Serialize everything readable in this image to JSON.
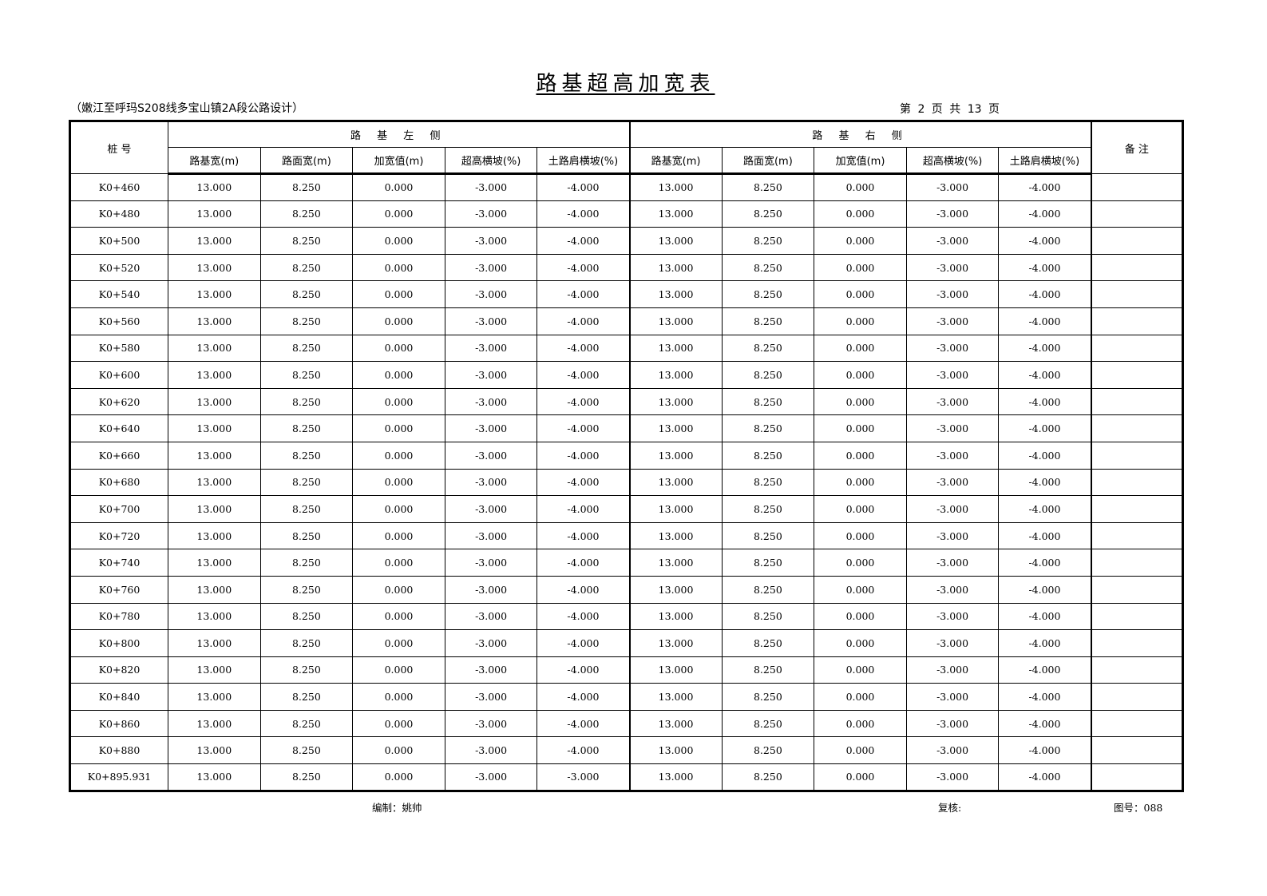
{
  "title": "路基超高加宽表",
  "subtitle": "（嫩江至呼玛S208线多宝山镇2A段公路设计）",
  "page_info": "第 2 页  共 13 页",
  "table": {
    "station_header": "桩  号",
    "left_group": "路 基 左 侧",
    "right_group": "路 基 右 侧",
    "remark_header": "备 注",
    "sub_headers": [
      "路基宽(m)",
      "路面宽(m)",
      "加宽值(m)",
      "超高横坡(%)",
      "土路肩横坡(%)",
      "路基宽(m)",
      "路面宽(m)",
      "加宽值(m)",
      "超高横坡(%)",
      "土路肩横坡(%)"
    ],
    "rows": [
      [
        "K0+460",
        "13.000",
        "8.250",
        "0.000",
        "-3.000",
        "-4.000",
        "13.000",
        "8.250",
        "0.000",
        "-3.000",
        "-4.000",
        ""
      ],
      [
        "K0+480",
        "13.000",
        "8.250",
        "0.000",
        "-3.000",
        "-4.000",
        "13.000",
        "8.250",
        "0.000",
        "-3.000",
        "-4.000",
        ""
      ],
      [
        "K0+500",
        "13.000",
        "8.250",
        "0.000",
        "-3.000",
        "-4.000",
        "13.000",
        "8.250",
        "0.000",
        "-3.000",
        "-4.000",
        ""
      ],
      [
        "K0+520",
        "13.000",
        "8.250",
        "0.000",
        "-3.000",
        "-4.000",
        "13.000",
        "8.250",
        "0.000",
        "-3.000",
        "-4.000",
        ""
      ],
      [
        "K0+540",
        "13.000",
        "8.250",
        "0.000",
        "-3.000",
        "-4.000",
        "13.000",
        "8.250",
        "0.000",
        "-3.000",
        "-4.000",
        ""
      ],
      [
        "K0+560",
        "13.000",
        "8.250",
        "0.000",
        "-3.000",
        "-4.000",
        "13.000",
        "8.250",
        "0.000",
        "-3.000",
        "-4.000",
        ""
      ],
      [
        "K0+580",
        "13.000",
        "8.250",
        "0.000",
        "-3.000",
        "-4.000",
        "13.000",
        "8.250",
        "0.000",
        "-3.000",
        "-4.000",
        ""
      ],
      [
        "K0+600",
        "13.000",
        "8.250",
        "0.000",
        "-3.000",
        "-4.000",
        "13.000",
        "8.250",
        "0.000",
        "-3.000",
        "-4.000",
        ""
      ],
      [
        "K0+620",
        "13.000",
        "8.250",
        "0.000",
        "-3.000",
        "-4.000",
        "13.000",
        "8.250",
        "0.000",
        "-3.000",
        "-4.000",
        ""
      ],
      [
        "K0+640",
        "13.000",
        "8.250",
        "0.000",
        "-3.000",
        "-4.000",
        "13.000",
        "8.250",
        "0.000",
        "-3.000",
        "-4.000",
        ""
      ],
      [
        "K0+660",
        "13.000",
        "8.250",
        "0.000",
        "-3.000",
        "-4.000",
        "13.000",
        "8.250",
        "0.000",
        "-3.000",
        "-4.000",
        ""
      ],
      [
        "K0+680",
        "13.000",
        "8.250",
        "0.000",
        "-3.000",
        "-4.000",
        "13.000",
        "8.250",
        "0.000",
        "-3.000",
        "-4.000",
        ""
      ],
      [
        "K0+700",
        "13.000",
        "8.250",
        "0.000",
        "-3.000",
        "-4.000",
        "13.000",
        "8.250",
        "0.000",
        "-3.000",
        "-4.000",
        ""
      ],
      [
        "K0+720",
        "13.000",
        "8.250",
        "0.000",
        "-3.000",
        "-4.000",
        "13.000",
        "8.250",
        "0.000",
        "-3.000",
        "-4.000",
        ""
      ],
      [
        "K0+740",
        "13.000",
        "8.250",
        "0.000",
        "-3.000",
        "-4.000",
        "13.000",
        "8.250",
        "0.000",
        "-3.000",
        "-4.000",
        ""
      ],
      [
        "K0+760",
        "13.000",
        "8.250",
        "0.000",
        "-3.000",
        "-4.000",
        "13.000",
        "8.250",
        "0.000",
        "-3.000",
        "-4.000",
        ""
      ],
      [
        "K0+780",
        "13.000",
        "8.250",
        "0.000",
        "-3.000",
        "-4.000",
        "13.000",
        "8.250",
        "0.000",
        "-3.000",
        "-4.000",
        ""
      ],
      [
        "K0+800",
        "13.000",
        "8.250",
        "0.000",
        "-3.000",
        "-4.000",
        "13.000",
        "8.250",
        "0.000",
        "-3.000",
        "-4.000",
        ""
      ],
      [
        "K0+820",
        "13.000",
        "8.250",
        "0.000",
        "-3.000",
        "-4.000",
        "13.000",
        "8.250",
        "0.000",
        "-3.000",
        "-4.000",
        ""
      ],
      [
        "K0+840",
        "13.000",
        "8.250",
        "0.000",
        "-3.000",
        "-4.000",
        "13.000",
        "8.250",
        "0.000",
        "-3.000",
        "-4.000",
        ""
      ],
      [
        "K0+860",
        "13.000",
        "8.250",
        "0.000",
        "-3.000",
        "-4.000",
        "13.000",
        "8.250",
        "0.000",
        "-3.000",
        "-4.000",
        ""
      ],
      [
        "K0+880",
        "13.000",
        "8.250",
        "0.000",
        "-3.000",
        "-4.000",
        "13.000",
        "8.250",
        "0.000",
        "-3.000",
        "-4.000",
        ""
      ],
      [
        "K0+895.931",
        "13.000",
        "8.250",
        "0.000",
        "-3.000",
        "-3.000",
        "13.000",
        "8.250",
        "0.000",
        "-3.000",
        "-4.000",
        ""
      ]
    ]
  },
  "footer": {
    "compiled_by": "编制：姚帅",
    "reviewed_by": "复核:",
    "drawing_no": "图号：088"
  }
}
